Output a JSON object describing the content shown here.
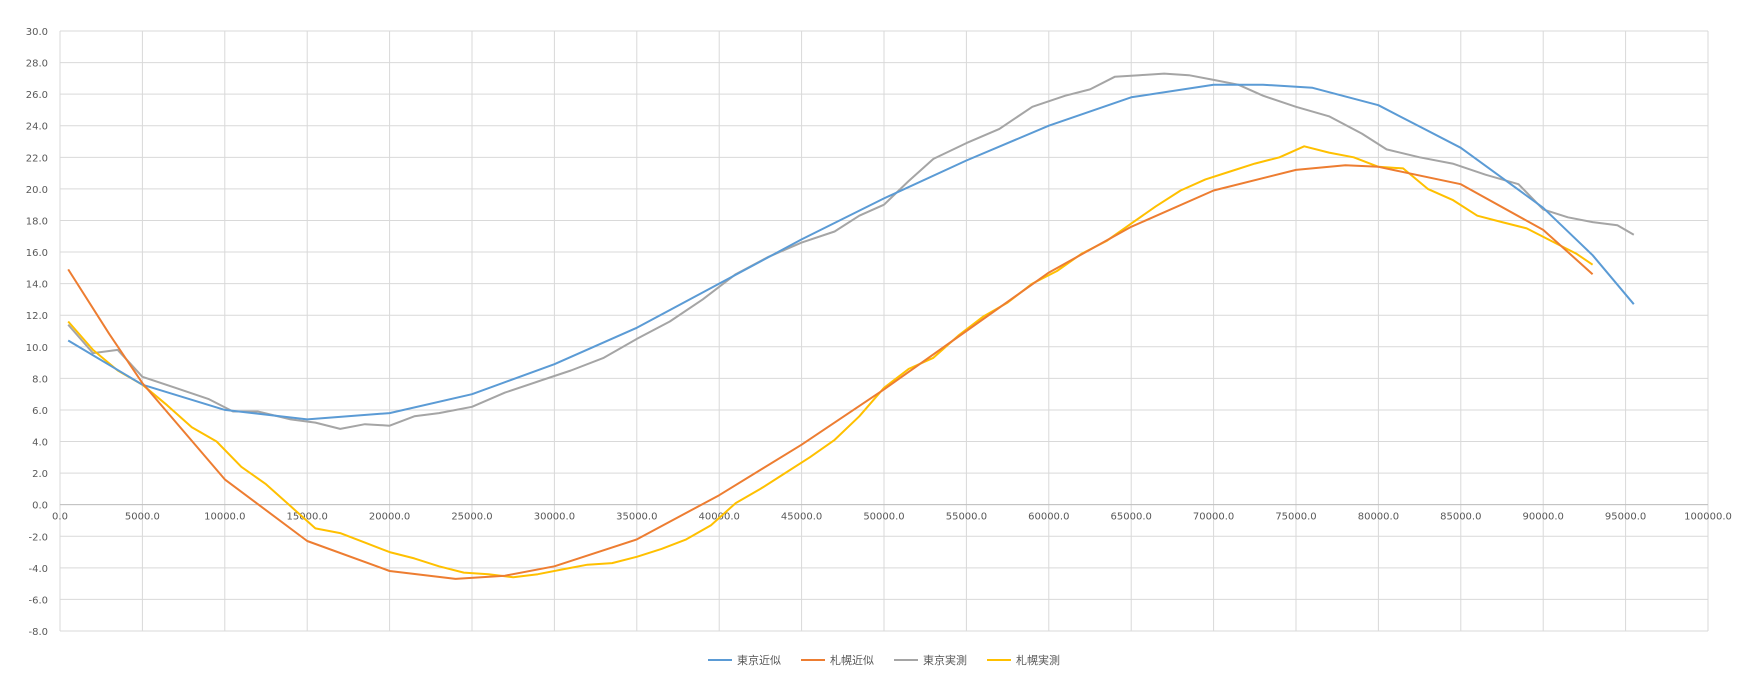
{
  "chart_data": {
    "type": "line",
    "title": "",
    "xlabel": "",
    "ylabel": "",
    "xlim": [
      0,
      100000
    ],
    "ylim": [
      -8,
      30
    ],
    "x_ticks": [
      "0.0",
      "5000.0",
      "10000.0",
      "15000.0",
      "20000.0",
      "25000.0",
      "30000.0",
      "35000.0",
      "40000.0",
      "45000.0",
      "50000.0",
      "55000.0",
      "60000.0",
      "65000.0",
      "70000.0",
      "75000.0",
      "80000.0",
      "85000.0",
      "90000.0",
      "95000.0",
      "100000.0"
    ],
    "y_ticks": [
      "30.0",
      "28.0",
      "26.0",
      "24.0",
      "22.0",
      "20.0",
      "18.0",
      "16.0",
      "14.0",
      "12.0",
      "10.0",
      "8.0",
      "6.0",
      "4.0",
      "2.0",
      "0.0",
      "-2.0",
      "-4.0",
      "-6.0",
      "-8.0"
    ],
    "grid": true,
    "legend_position": "bottom-center",
    "series": [
      {
        "name": "東京近似",
        "color": "#5B9BD5",
        "x": [
          500,
          5000,
          10000,
          15000,
          20000,
          25000,
          30000,
          35000,
          40000,
          45000,
          50000,
          55000,
          60000,
          65000,
          70000,
          73000,
          76000,
          80000,
          85000,
          90000,
          93000,
          95500
        ],
        "y": [
          10.4,
          7.6,
          6.0,
          5.4,
          5.8,
          7.0,
          8.9,
          11.2,
          14.0,
          16.8,
          19.4,
          21.8,
          24.0,
          25.8,
          26.6,
          26.6,
          26.4,
          25.3,
          22.6,
          18.8,
          15.8,
          12.7
        ]
      },
      {
        "name": "札幌近似",
        "color": "#ED7D31",
        "x": [
          500,
          3000,
          5000,
          10000,
          15000,
          20000,
          24000,
          27000,
          30000,
          35000,
          40000,
          45000,
          50000,
          55000,
          60000,
          65000,
          70000,
          75000,
          78000,
          80000,
          85000,
          90000,
          93000
        ],
        "y": [
          14.9,
          10.8,
          7.7,
          1.6,
          -2.3,
          -4.2,
          -4.7,
          -4.5,
          -3.9,
          -2.2,
          0.6,
          3.8,
          7.3,
          11.0,
          14.7,
          17.6,
          19.9,
          21.2,
          21.5,
          21.4,
          20.3,
          17.4,
          14.6
        ]
      },
      {
        "name": "東京実測",
        "color": "#A5A5A5",
        "x": [
          500,
          2000,
          3500,
          5000,
          7000,
          9000,
          10500,
          12000,
          14000,
          15500,
          17000,
          18500,
          20000,
          21500,
          23000,
          25000,
          27000,
          29000,
          31000,
          33000,
          35000,
          37000,
          39000,
          41000,
          43000,
          45000,
          47000,
          48500,
          50000,
          51500,
          53000,
          55000,
          57000,
          59000,
          61000,
          62500,
          64000,
          65500,
          67000,
          68500,
          70000,
          71500,
          73000,
          75000,
          77000,
          79000,
          80500,
          82500,
          84500,
          86500,
          88500,
          90000,
          91500,
          93000,
          94500,
          95500
        ],
        "y": [
          11.4,
          9.6,
          9.8,
          8.1,
          7.4,
          6.7,
          5.9,
          5.9,
          5.4,
          5.2,
          4.8,
          5.1,
          5.0,
          5.6,
          5.8,
          6.2,
          7.1,
          7.8,
          8.5,
          9.3,
          10.5,
          11.6,
          13.0,
          14.6,
          15.7,
          16.6,
          17.3,
          18.3,
          19.0,
          20.5,
          21.9,
          22.9,
          23.8,
          25.2,
          25.9,
          26.3,
          27.1,
          27.2,
          27.3,
          27.2,
          26.9,
          26.6,
          25.9,
          25.2,
          24.6,
          23.5,
          22.5,
          22.0,
          21.6,
          20.9,
          20.3,
          18.7,
          18.2,
          17.9,
          17.7,
          17.1
        ]
      },
      {
        "name": "札幌実測",
        "color": "#FFC000",
        "x": [
          500,
          2000,
          3500,
          5000,
          6500,
          8000,
          9500,
          11000,
          12500,
          14000,
          15500,
          17000,
          18500,
          20000,
          21500,
          23000,
          24500,
          26000,
          27500,
          29000,
          30500,
          32000,
          33500,
          35000,
          36500,
          38000,
          39500,
          41000,
          42500,
          44000,
          45500,
          47000,
          48500,
          50000,
          51500,
          53000,
          54500,
          56000,
          57500,
          59000,
          60500,
          62000,
          63500,
          65000,
          66500,
          68000,
          69500,
          71000,
          72500,
          74000,
          75500,
          77000,
          78500,
          80000,
          81500,
          83000,
          84500,
          86000,
          87500,
          89000,
          90500,
          92000,
          93000
        ],
        "y": [
          11.6,
          9.8,
          8.5,
          7.6,
          6.3,
          4.9,
          4.0,
          2.4,
          1.3,
          -0.1,
          -1.5,
          -1.8,
          -2.4,
          -3.0,
          -3.4,
          -3.9,
          -4.3,
          -4.4,
          -4.6,
          -4.4,
          -4.1,
          -3.8,
          -3.7,
          -3.3,
          -2.8,
          -2.2,
          -1.3,
          0.1,
          1.0,
          2.0,
          3.0,
          4.1,
          5.6,
          7.4,
          8.6,
          9.3,
          10.7,
          11.9,
          12.8,
          14.0,
          14.8,
          15.9,
          16.7,
          17.8,
          18.9,
          19.9,
          20.6,
          21.1,
          21.6,
          22.0,
          22.7,
          22.3,
          22.0,
          21.4,
          21.3,
          20.0,
          19.3,
          18.3,
          17.9,
          17.5,
          16.7,
          15.9,
          15.2
        ]
      }
    ]
  }
}
